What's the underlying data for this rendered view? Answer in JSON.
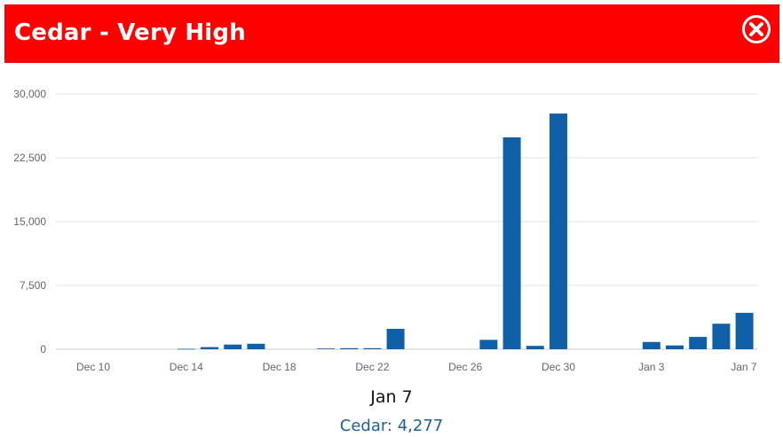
{
  "header": {
    "title": "Cedar - Very High",
    "background": "#ff0000",
    "close_icon": "close-circle-icon"
  },
  "chart_data": {
    "type": "bar",
    "x": [
      "Dec 10",
      "Dec 11",
      "Dec 12",
      "Dec 13",
      "Dec 14",
      "Dec 15",
      "Dec 16",
      "Dec 17",
      "Dec 18",
      "Dec 19",
      "Dec 20",
      "Dec 21",
      "Dec 22",
      "Dec 23",
      "Dec 24",
      "Dec 25",
      "Dec 26",
      "Dec 27",
      "Dec 28",
      "Dec 29",
      "Dec 30",
      "Dec 31",
      "Jan 1",
      "Jan 2",
      "Jan 3",
      "Jan 4",
      "Jan 5",
      "Jan 6",
      "Jan 7"
    ],
    "values": [
      0,
      0,
      0,
      0,
      50,
      250,
      550,
      650,
      0,
      0,
      80,
      120,
      120,
      2400,
      0,
      0,
      0,
      1100,
      24900,
      400,
      27700,
      0,
      0,
      0,
      850,
      450,
      1450,
      3000,
      4277
    ],
    "x_tick_labels": [
      "Dec 10",
      "Dec 14",
      "Dec 18",
      "Dec 22",
      "Dec 26",
      "Dec 30",
      "Jan 3",
      "Jan 7"
    ],
    "y_ticks": [
      0,
      7500,
      15000,
      22500,
      30000
    ],
    "y_tick_labels": [
      "0",
      "7,500",
      "15,000",
      "22,500",
      "30,000"
    ],
    "ylim": [
      0,
      30000
    ],
    "bar_color": "#1060a8",
    "grid": true
  },
  "focus": {
    "date": "Jan 7",
    "value_text": "Cedar: 4,277"
  }
}
